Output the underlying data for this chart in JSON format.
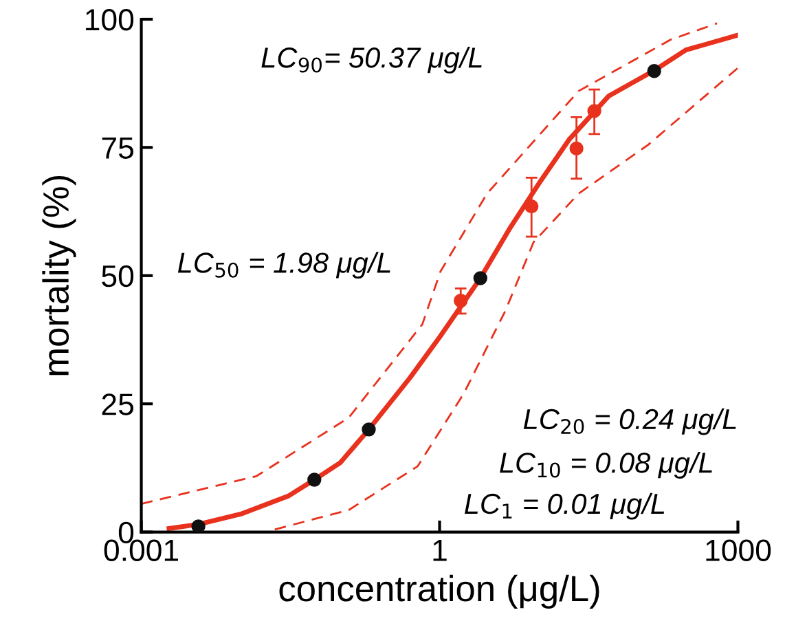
{
  "chart_data": {
    "type": "line",
    "xlabel": "concentration (μg/L)",
    "ylabel": "mortality (%)",
    "log": "x",
    "xlim": [
      0.001,
      1000
    ],
    "xticks": [
      {
        "value": 0.001,
        "label": "0.001"
      },
      1,
      1000
    ],
    "ylim": [
      0,
      100
    ],
    "yticks": [
      0,
      25,
      50,
      75,
      100
    ],
    "grid": false,
    "series": [
      {
        "color": "#e8321e",
        "line_style": "solid",
        "marker": "none",
        "x": [
          0.0019,
          0.00375,
          0.01,
          0.03,
          0.055,
          0.1,
          0.194,
          0.5,
          1,
          2.57,
          5,
          10,
          20,
          50,
          144,
          300,
          1000
        ],
        "values": [
          0.7,
          1.5,
          3.5,
          7,
          10.2,
          13.5,
          20,
          30,
          38,
          49.5,
          59,
          68,
          76.5,
          85,
          90,
          94,
          96.9
        ]
      },
      {
        "color": "#e8321e",
        "line_style": "dashed",
        "marker": "none",
        "x": [
          0.001,
          0.0144,
          0.122,
          0.67,
          1.02,
          3.0,
          25,
          210,
          617
        ],
        "values": [
          5.5,
          10.9,
          22.3,
          40.5,
          50.8,
          66,
          86,
          96,
          99.2
        ]
      },
      {
        "color": "#e8321e",
        "line_style": "dashed",
        "marker": "none",
        "x": [
          0.022,
          0.122,
          0.6,
          1.75,
          4.6,
          8.8,
          25,
          125,
          1000
        ],
        "values": [
          0.5,
          4.3,
          12.8,
          27,
          43.2,
          56.5,
          66,
          75.5,
          90.5
        ]
      },
      {
        "type": "scatter",
        "color": "#e8321e",
        "marker": "circle",
        "x": [
          1.63,
          8.4,
          23.8,
          36
        ],
        "values": [
          45.1,
          63.5,
          74.8,
          82.1
        ],
        "errors": [
          [
            42.6,
            47.5
          ],
          [
            57.6,
            69.1
          ],
          [
            68.9,
            80.9
          ],
          [
            77.6,
            86.3
          ]
        ]
      },
      {
        "type": "scatter",
        "color": "#111111",
        "marker": "circle",
        "x": [
          0.00375,
          0.055,
          0.194,
          2.57,
          144
        ],
        "values": [
          1.1,
          10.2,
          20,
          49.5,
          89.9
        ]
      }
    ],
    "annotations": [
      "LC$_{90}$= 50.37 μg/L",
      "LC$_{50}$ = 1.98 μg/L",
      "LC$_{20}$ = 0.24 μg/L",
      "LC$_{10}$ = 0.08 μg/L",
      "LC$_{1}$ = 0.01 μg/L"
    ]
  }
}
